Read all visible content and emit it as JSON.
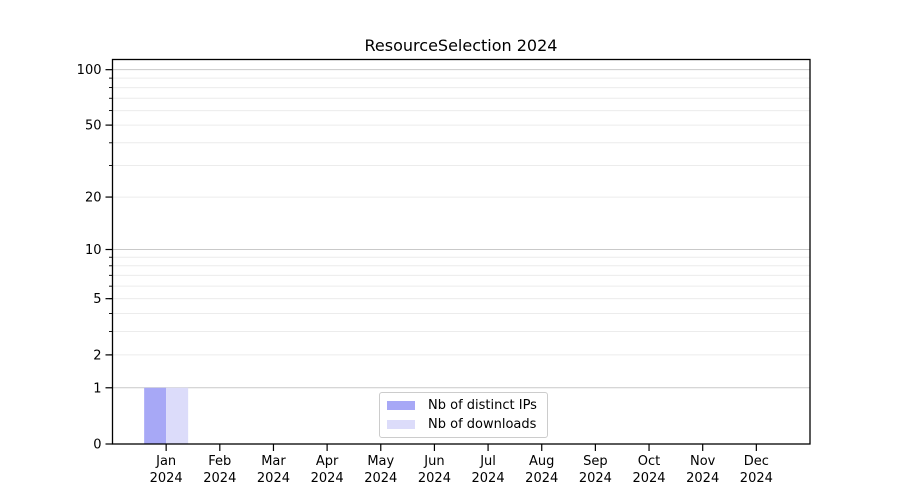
{
  "chart_data": {
    "type": "bar",
    "title": "ResourceSelection 2024",
    "year_label": "2024",
    "categories": [
      "Jan",
      "Feb",
      "Mar",
      "Apr",
      "May",
      "Jun",
      "Jul",
      "Aug",
      "Sep",
      "Oct",
      "Nov",
      "Dec"
    ],
    "series": [
      {
        "name": "Nb of distinct IPs",
        "color": "#a7a8f6",
        "values": [
          1,
          0,
          0,
          0,
          0,
          0,
          0,
          0,
          0,
          0,
          0,
          0
        ]
      },
      {
        "name": "Nb of downloads",
        "color": "#dcdcfa",
        "values": [
          1,
          0,
          0,
          0,
          0,
          0,
          0,
          0,
          0,
          0,
          0,
          0
        ]
      }
    ],
    "yscale": "log1p",
    "ylim": [
      0,
      113.5
    ],
    "yticks": [
      0,
      1,
      2,
      5,
      10,
      20,
      50,
      100
    ],
    "yticks_minor": [
      2,
      3,
      4,
      5,
      6,
      7,
      8,
      9,
      20,
      30,
      40,
      50,
      60,
      70,
      80,
      90
    ],
    "grid_major_lines": [
      1,
      10,
      100
    ],
    "grid": "horizontal",
    "legend_position": "lower center",
    "xlabel": "",
    "ylabel": ""
  },
  "colors": {
    "background": "#ffffff",
    "grid_minor": "#ececec",
    "grid_major": "#c9c9c9",
    "spine": "#000000",
    "tick": "#000000",
    "text": "#000000",
    "legend_border": "#cccccc",
    "legend_bg": "#ffffff"
  }
}
